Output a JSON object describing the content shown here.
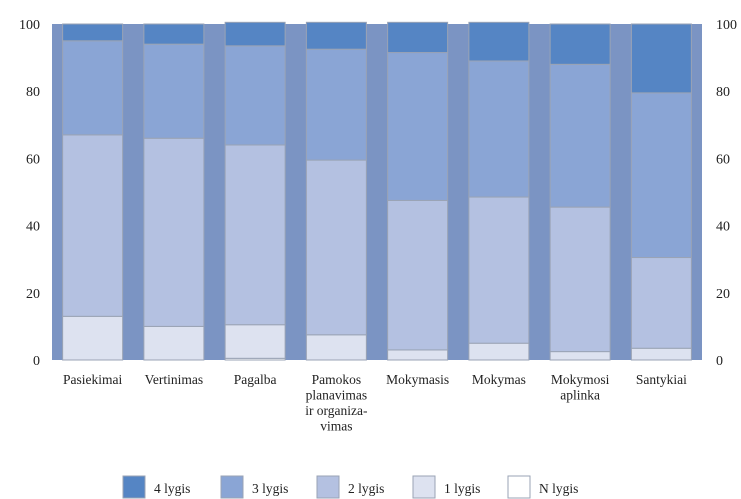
{
  "chart_data": {
    "type": "bar",
    "stacked": true,
    "categories": [
      [
        "Pasiekimai"
      ],
      [
        "Vertinimas"
      ],
      [
        "Pagalba"
      ],
      [
        "Pamokos",
        "planavimas",
        "ir organiza-",
        "vimas"
      ],
      [
        "Mokymasis"
      ],
      [
        "Mokymas"
      ],
      [
        "Mokymosi",
        "aplinka"
      ],
      [
        "Santykiai"
      ]
    ],
    "series": [
      {
        "name": "N lygis",
        "color": "#ffffff",
        "values": [
          0,
          0,
          0.5,
          0,
          0,
          0,
          0,
          0
        ]
      },
      {
        "name": "1 lygis",
        "color": "#dde2f0",
        "values": [
          13,
          10,
          10,
          7.5,
          3,
          5,
          2.5,
          3.5
        ]
      },
      {
        "name": "2 lygis",
        "color": "#b4c1e1",
        "values": [
          54,
          56,
          53.5,
          52,
          44.5,
          43.5,
          43,
          27
        ]
      },
      {
        "name": "3 lygis",
        "color": "#8aa5d5",
        "values": [
          28,
          28,
          29.5,
          33,
          44,
          40.5,
          42.5,
          49
        ]
      },
      {
        "name": "4 lygis",
        "color": "#5585c4",
        "values": [
          5,
          6,
          7,
          8,
          9,
          11.5,
          12,
          20.5
        ]
      }
    ],
    "legend_order": [
      "4 lygis",
      "3 lygis",
      "2 lygis",
      "1 lygis",
      "N lygis"
    ],
    "legend_position": "bottom",
    "ylim": [
      0,
      100
    ],
    "yticks": [
      "0",
      "20",
      "40",
      "60",
      "80",
      "100"
    ],
    "y_axis_sides": "left-and-right",
    "grid": false,
    "stripe_color": "#7b94c3"
  }
}
